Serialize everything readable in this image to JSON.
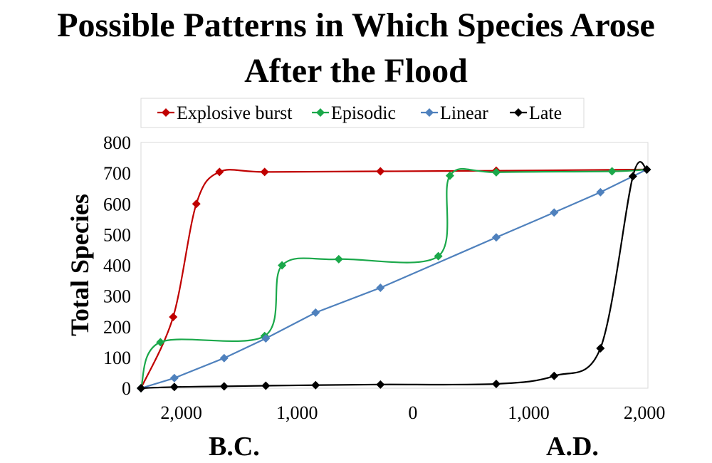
{
  "chart_data": {
    "type": "line",
    "title_line1": "Possible Patterns in Which Species Arose",
    "title_line2": "After the Flood",
    "ylabel": "Total Species",
    "ylim": [
      0,
      800
    ],
    "yticks": [
      0,
      100,
      200,
      300,
      400,
      500,
      600,
      700,
      800
    ],
    "xlim": [
      -2348,
      2030
    ],
    "xticks": [
      {
        "value": -2000,
        "label": "2,000"
      },
      {
        "value": -1000,
        "label": "1,000"
      },
      {
        "value": 0,
        "label": "0"
      },
      {
        "value": 1000,
        "label": "1,000"
      },
      {
        "value": 2000,
        "label": "2,000"
      }
    ],
    "era_labels": {
      "left": "B.C.",
      "right": "A.D."
    },
    "legend_position": "top",
    "grid": false,
    "series": [
      {
        "name": "Explosive burst",
        "color": "#c00000",
        "points": [
          [
            -2348,
            0
          ],
          [
            -2070,
            232
          ],
          [
            -1870,
            600
          ],
          [
            -1670,
            704
          ],
          [
            -1280,
            704
          ],
          [
            -280,
            706
          ],
          [
            720,
            708
          ],
          [
            2020,
            712
          ]
        ]
      },
      {
        "name": "Episodic",
        "color": "#1aa84a",
        "points": [
          [
            -2348,
            0
          ],
          [
            -2180,
            150
          ],
          [
            -1280,
            170
          ],
          [
            -1130,
            400
          ],
          [
            -640,
            420
          ],
          [
            220,
            430
          ],
          [
            320,
            692
          ],
          [
            720,
            703
          ],
          [
            1720,
            706
          ],
          [
            2020,
            712
          ]
        ]
      },
      {
        "name": "Linear",
        "color": "#4f81bd",
        "points": [
          [
            -2348,
            0
          ],
          [
            -2060,
            33
          ],
          [
            -1630,
            98
          ],
          [
            -1270,
            162
          ],
          [
            -840,
            246
          ],
          [
            -280,
            327
          ],
          [
            720,
            491
          ],
          [
            1220,
            572
          ],
          [
            1620,
            638
          ],
          [
            2020,
            712
          ]
        ]
      },
      {
        "name": "Late",
        "color": "#000000",
        "points": [
          [
            -2348,
            0
          ],
          [
            -2060,
            4
          ],
          [
            -1630,
            6
          ],
          [
            -1270,
            8
          ],
          [
            -840,
            10
          ],
          [
            -280,
            12
          ],
          [
            720,
            14
          ],
          [
            1220,
            40
          ],
          [
            1620,
            130
          ],
          [
            1900,
            690
          ],
          [
            2020,
            712
          ]
        ]
      }
    ]
  }
}
